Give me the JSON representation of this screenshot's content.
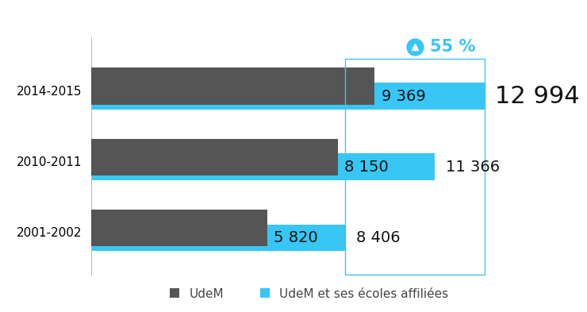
{
  "chart_data": {
    "type": "bar",
    "orientation": "horizontal",
    "categories": [
      "2014-2015",
      "2010-2011",
      "2001-2002"
    ],
    "series": [
      {
        "name": "UdeM",
        "color": "#555555",
        "values": [
          9369,
          8150,
          5820
        ],
        "value_labels": [
          "9 369",
          "8 150",
          "5 820"
        ]
      },
      {
        "name": "UdeM et ses écoles affiliées",
        "color": "#38c6f4",
        "values": [
          12994,
          11366,
          8406
        ],
        "value_labels": [
          "12 994",
          "11 366",
          "8 406"
        ]
      }
    ],
    "xlim": [
      0,
      16000
    ],
    "data_labels": true,
    "tick_labels": "y",
    "legend": "bottom",
    "annotation": "55 %"
  }
}
